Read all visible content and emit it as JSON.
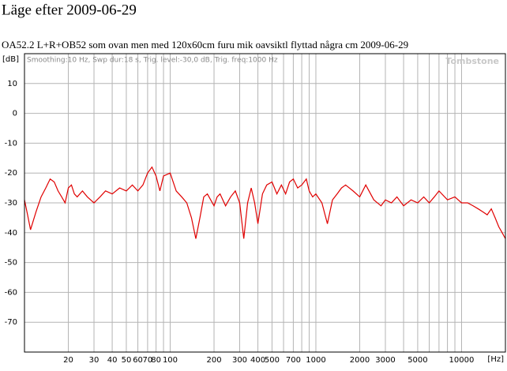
{
  "chart_data": {
    "type": "line",
    "title": "Läge efter 2009-06-29",
    "subtitle": "OA52.2 L+R+OB52 som ovan men med 120x60cm furu mik oavsiktl flyttad några cm 2009-06-29",
    "y_label": "[dB]",
    "x_label": "[Hz]",
    "annotation": "Smoothing:10 Hz, Swp dur:18 s, Trig. level:-30,0 dB, Trig. freq:1000 Hz",
    "watermark": "Tombstone",
    "x_log": true,
    "grid": true,
    "xlim": [
      10,
      20000
    ],
    "ylim": [
      -80,
      20
    ],
    "yticks": [
      10,
      0,
      -10,
      -20,
      -30,
      -40,
      -50,
      -60,
      -70
    ],
    "xticks": [
      20,
      30,
      40,
      50,
      60,
      70,
      80,
      100,
      200,
      300,
      400,
      500,
      700,
      1000,
      2000,
      3000,
      5000,
      10000
    ],
    "xminor_ticks": [
      90,
      600,
      800,
      900,
      4000,
      6000,
      7000,
      8000,
      9000
    ],
    "series": [
      {
        "name": "response",
        "color": "#e00000",
        "x": [
          10,
          10.5,
          11,
          12,
          13,
          14,
          15,
          16,
          17,
          18,
          19,
          20,
          21,
          22,
          23,
          25,
          27,
          30,
          33,
          36,
          40,
          45,
          50,
          55,
          60,
          65,
          70,
          75,
          80,
          85,
          90,
          100,
          110,
          120,
          130,
          140,
          150,
          160,
          170,
          180,
          200,
          210,
          220,
          240,
          260,
          280,
          300,
          320,
          340,
          360,
          380,
          400,
          430,
          460,
          500,
          540,
          580,
          620,
          660,
          700,
          750,
          800,
          860,
          900,
          950,
          1000,
          1100,
          1200,
          1300,
          1400,
          1500,
          1600,
          1800,
          2000,
          2200,
          2500,
          2800,
          3000,
          3300,
          3600,
          4000,
          4500,
          5000,
          5500,
          6000,
          6500,
          7000,
          8000,
          9000,
          10000,
          11000,
          12000,
          13000,
          14000,
          15000,
          16000,
          17000,
          18000,
          19000,
          20000
        ],
        "values": [
          -29,
          -34,
          -39,
          -33,
          -28,
          -25,
          -22,
          -23,
          -26,
          -28,
          -30,
          -25,
          -24,
          -27,
          -28,
          -26,
          -28,
          -30,
          -28,
          -26,
          -27,
          -25,
          -26,
          -24,
          -26,
          -24,
          -20,
          -18,
          -21,
          -26,
          -21,
          -20,
          -26,
          -28,
          -30,
          -35,
          -42,
          -35,
          -28,
          -27,
          -31,
          -28,
          -27,
          -31,
          -28,
          -26,
          -30,
          -42,
          -30,
          -25,
          -30,
          -37,
          -27,
          -24,
          -23,
          -27,
          -24,
          -27,
          -23,
          -22,
          -25,
          -24,
          -22,
          -26,
          -28,
          -27,
          -30,
          -37,
          -29,
          -27,
          -25,
          -24,
          -26,
          -28,
          -24,
          -29,
          -31,
          -29,
          -30,
          -28,
          -31,
          -29,
          -30,
          -28,
          -30,
          -28,
          -26,
          -29,
          -28,
          -30,
          -30,
          -31,
          -32,
          -33,
          -34,
          -32,
          -35,
          -38,
          -40,
          -42
        ]
      }
    ]
  }
}
